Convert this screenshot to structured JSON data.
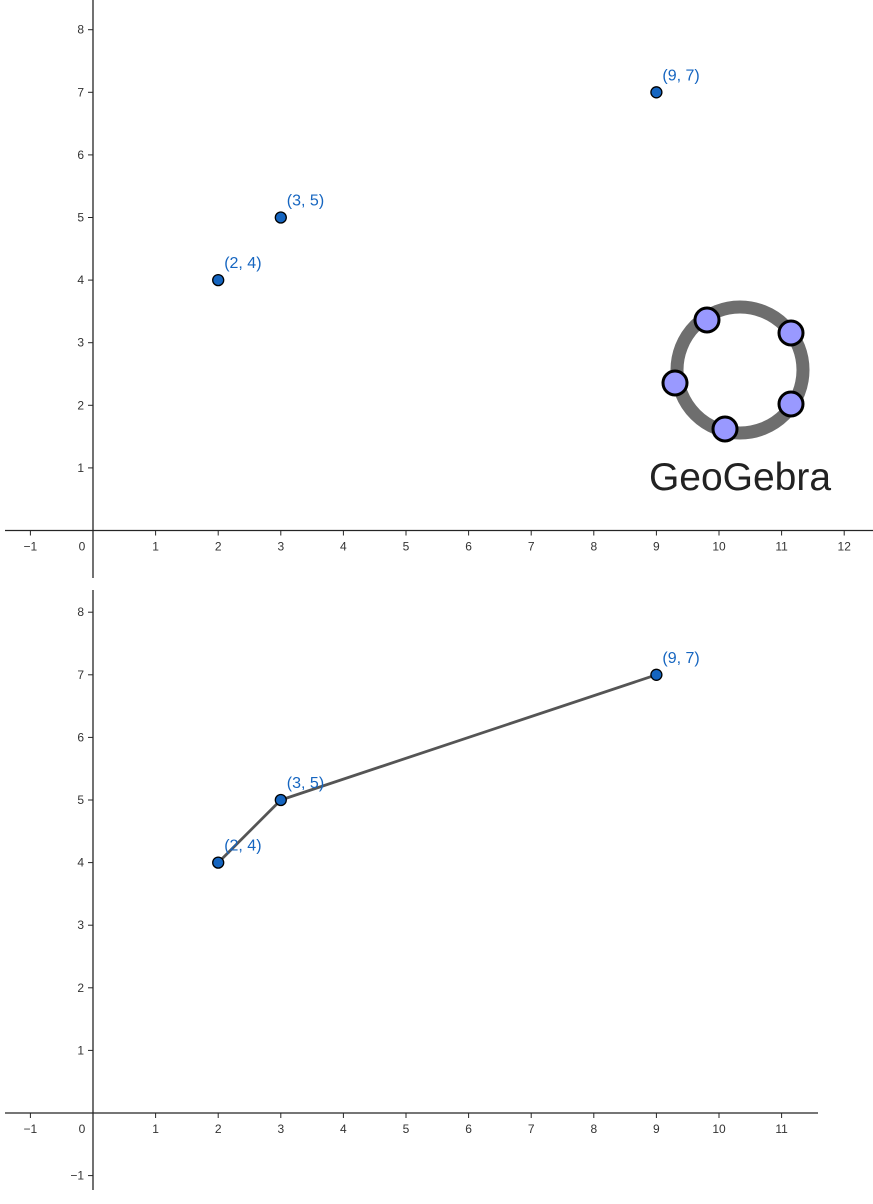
{
  "chart_data": [
    {
      "type": "scatter",
      "title": "",
      "xlabel": "",
      "ylabel": "",
      "xlim": [
        -1,
        12
      ],
      "ylim": [
        0,
        8
      ],
      "x_ticks": [
        -1,
        0,
        1,
        2,
        3,
        4,
        5,
        6,
        7,
        8,
        9,
        10,
        11,
        12
      ],
      "y_ticks": [
        1,
        2,
        3,
        4,
        5,
        6,
        7,
        8
      ],
      "tick_labels_x": [
        "−1",
        "0",
        "1",
        "2",
        "3",
        "4",
        "5",
        "6",
        "7",
        "8",
        "9",
        "10",
        "11",
        "12"
      ],
      "tick_labels_y": [
        "1",
        "2",
        "3",
        "4",
        "5",
        "6",
        "7",
        "8"
      ],
      "grid": false,
      "connected": false,
      "points": [
        {
          "x": 2,
          "y": 4,
          "label": "(2, 4)"
        },
        {
          "x": 3,
          "y": 5,
          "label": "(3, 5)"
        },
        {
          "x": 9,
          "y": 7,
          "label": "(9, 7)"
        }
      ],
      "point_color": "#1565C0",
      "logo_text": "GeoGebra"
    },
    {
      "type": "line",
      "title": "",
      "xlabel": "",
      "ylabel": "",
      "xlim": [
        -1,
        11
      ],
      "ylim": [
        -1,
        8
      ],
      "x_ticks": [
        -1,
        0,
        1,
        2,
        3,
        4,
        5,
        6,
        7,
        8,
        9,
        10,
        11
      ],
      "y_ticks": [
        -1,
        1,
        2,
        3,
        4,
        5,
        6,
        7,
        8
      ],
      "tick_labels_x": [
        "−1",
        "0",
        "1",
        "2",
        "3",
        "4",
        "5",
        "6",
        "7",
        "8",
        "9",
        "10",
        "11"
      ],
      "tick_labels_y": [
        "−1",
        "1",
        "2",
        "3",
        "4",
        "5",
        "6",
        "7",
        "8"
      ],
      "grid": false,
      "connected": true,
      "points": [
        {
          "x": 2,
          "y": 4,
          "label": "(2, 4)"
        },
        {
          "x": 3,
          "y": 5,
          "label": "(3, 5)"
        },
        {
          "x": 9,
          "y": 7,
          "label": "(9, 7)"
        }
      ],
      "point_color": "#1565C0",
      "line_color": "#555555"
    }
  ]
}
